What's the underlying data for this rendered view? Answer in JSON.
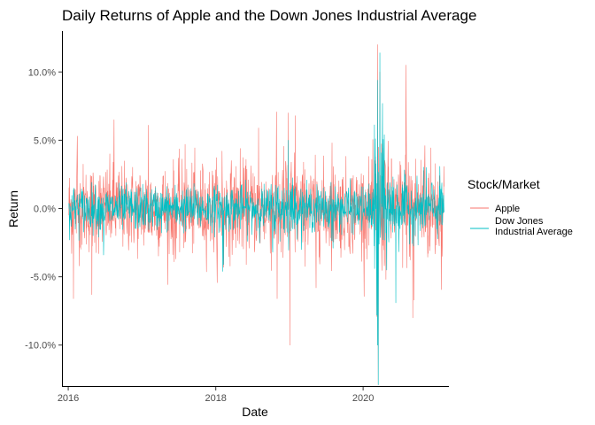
{
  "chart_data": {
    "type": "line",
    "title": "Daily Returns of Apple and the Down Jones Industrial Average",
    "xlabel": "Date",
    "ylabel": "Return",
    "x_range": [
      "2016-01-04",
      "2021-02-05"
    ],
    "xlim": [
      "2015-12-01",
      "2021-03-01"
    ],
    "ylim": [
      -0.13,
      0.13
    ],
    "x_ticks": [
      {
        "value": "2016-01-01",
        "label": "2016"
      },
      {
        "value": "2018-01-01",
        "label": "2018"
      },
      {
        "value": "2020-01-01",
        "label": "2020"
      }
    ],
    "y_ticks": [
      {
        "value": 0.1,
        "label": "10.0%"
      },
      {
        "value": 0.05,
        "label": "5.0%"
      },
      {
        "value": 0.0,
        "label": "0.0%"
      },
      {
        "value": -0.05,
        "label": "-5.0%"
      },
      {
        "value": -0.1,
        "label": "-10.0%"
      }
    ],
    "grid": false,
    "legend": {
      "title": "Stock/Market",
      "position": "right"
    },
    "series": [
      {
        "name": "Apple",
        "color": "#F8766D",
        "values": [
          {
            "x": "2016-01-27",
            "y": -0.066
          },
          {
            "x": "2016-02-15",
            "y": 0.053
          },
          {
            "x": "2016-04-27",
            "y": -0.063
          },
          {
            "x": "2016-08-15",
            "y": 0.065
          },
          {
            "x": "2017-02-01",
            "y": 0.061
          },
          {
            "x": "2017-06-09",
            "y": -0.039
          },
          {
            "x": "2017-08-02",
            "y": 0.047
          },
          {
            "x": "2018-02-01",
            "y": 0.042
          },
          {
            "x": "2018-02-09",
            "y": -0.043
          },
          {
            "x": "2018-05-02",
            "y": 0.044
          },
          {
            "x": "2018-08-01",
            "y": 0.059
          },
          {
            "x": "2018-11-01",
            "y": -0.066
          },
          {
            "x": "2018-12-26",
            "y": 0.07
          },
          {
            "x": "2019-01-03",
            "y": -0.1
          },
          {
            "x": "2019-01-30",
            "y": 0.068
          },
          {
            "x": "2019-05-13",
            "y": -0.058
          },
          {
            "x": "2019-07-31",
            "y": 0.048
          },
          {
            "x": "2020-03-09",
            "y": -0.079
          },
          {
            "x": "2020-03-13",
            "y": 0.12
          },
          {
            "x": "2020-03-16",
            "y": -0.129
          },
          {
            "x": "2020-03-24",
            "y": 0.1
          },
          {
            "x": "2020-07-31",
            "y": 0.105
          },
          {
            "x": "2020-09-03",
            "y": -0.08
          },
          {
            "x": "2020-09-08",
            "y": -0.067
          },
          {
            "x": "2020-11-02",
            "y": 0.046
          },
          {
            "x": "2021-01-27",
            "y": -0.035
          }
        ]
      },
      {
        "name": "Dow Jones\nIndustrial Average",
        "color": "#00BFC4",
        "values": [
          {
            "x": "2016-01-07",
            "y": -0.023
          },
          {
            "x": "2016-06-24",
            "y": -0.034
          },
          {
            "x": "2018-02-05",
            "y": -0.046
          },
          {
            "x": "2018-02-08",
            "y": -0.041
          },
          {
            "x": "2018-10-10",
            "y": -0.032
          },
          {
            "x": "2018-12-26",
            "y": 0.05
          },
          {
            "x": "2019-08-05",
            "y": -0.029
          },
          {
            "x": "2020-02-27",
            "y": -0.044
          },
          {
            "x": "2020-03-02",
            "y": 0.051
          },
          {
            "x": "2020-03-09",
            "y": -0.078
          },
          {
            "x": "2020-03-12",
            "y": -0.1
          },
          {
            "x": "2020-03-13",
            "y": 0.094
          },
          {
            "x": "2020-03-16",
            "y": -0.129
          },
          {
            "x": "2020-03-24",
            "y": 0.114
          },
          {
            "x": "2020-04-06",
            "y": 0.077
          },
          {
            "x": "2020-06-11",
            "y": -0.069
          },
          {
            "x": "2020-11-09",
            "y": 0.03
          }
        ]
      }
    ]
  }
}
